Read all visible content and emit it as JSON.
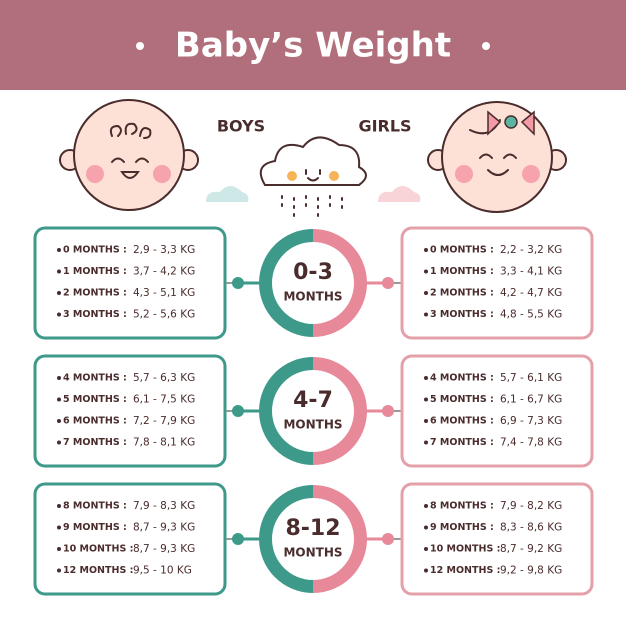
{
  "header": {
    "title": "Baby’s Weight"
  },
  "labels": {
    "boys": "BOYS",
    "girls": "GIRLS"
  },
  "groups": [
    {
      "range": "0-3",
      "unit": "MONTHS",
      "boys": [
        {
          "month": "0 MONTHS :",
          "weight": "2,9 - 3,3 KG"
        },
        {
          "month": "1 MONTHS :",
          "weight": "3,7 - 4,2 KG"
        },
        {
          "month": "2 MONTHS :",
          "weight": "4,3 - 5,1 KG"
        },
        {
          "month": "3 MONTHS :",
          "weight": "5,2 - 5,6 KG"
        }
      ],
      "girls": [
        {
          "month": "0 MONTHS :",
          "weight": "2,2 - 3,2 KG"
        },
        {
          "month": "1 MONTHS :",
          "weight": "3,3 - 4,1 KG"
        },
        {
          "month": "2 MONTHS :",
          "weight": "4,2 - 4,7 KG"
        },
        {
          "month": "3 MONTHS :",
          "weight": "4,8 - 5,5 KG"
        }
      ]
    },
    {
      "range": "4-7",
      "unit": "MONTHS",
      "boys": [
        {
          "month": "4 MONTHS :",
          "weight": "5,7 - 6,3 KG"
        },
        {
          "month": "5 MONTHS :",
          "weight": "6,1 - 7,5 KG"
        },
        {
          "month": "6 MONTHS :",
          "weight": "7,2 - 7,9 KG"
        },
        {
          "month": "7 MONTHS :",
          "weight": "7,8 - 8,1 KG"
        }
      ],
      "girls": [
        {
          "month": "4 MONTHS :",
          "weight": "5,7 - 6,1 KG"
        },
        {
          "month": "5 MONTHS :",
          "weight": "6,1 - 6,7 KG"
        },
        {
          "month": "6 MONTHS :",
          "weight": "6,9 - 7,3 KG"
        },
        {
          "month": "7 MONTHS :",
          "weight": "7,4 - 7,8 KG"
        }
      ]
    },
    {
      "range": "8-12",
      "unit": "MONTHS",
      "boys": [
        {
          "month": "8 MONTHS :",
          "weight": "7,9 - 8,3 KG"
        },
        {
          "month": "9 MONTHS :",
          "weight": "8,7 - 9,3 KG"
        },
        {
          "month": "10 MONTHS :",
          "weight": "8,7 - 9,3 KG"
        },
        {
          "month": "12 MONTHS :",
          "weight": "9,5 - 10 KG"
        }
      ],
      "girls": [
        {
          "month": "8 MONTHS :",
          "weight": "7,9 - 8,2 KG"
        },
        {
          "month": "9 MONTHS :",
          "weight": "8,3 - 8,6 KG"
        },
        {
          "month": "10 MONTHS :",
          "weight": "8,7 - 9,2 KG"
        },
        {
          "month": "12 MONTHS :",
          "weight": "9,2 - 9,8 KG"
        }
      ]
    }
  ]
}
